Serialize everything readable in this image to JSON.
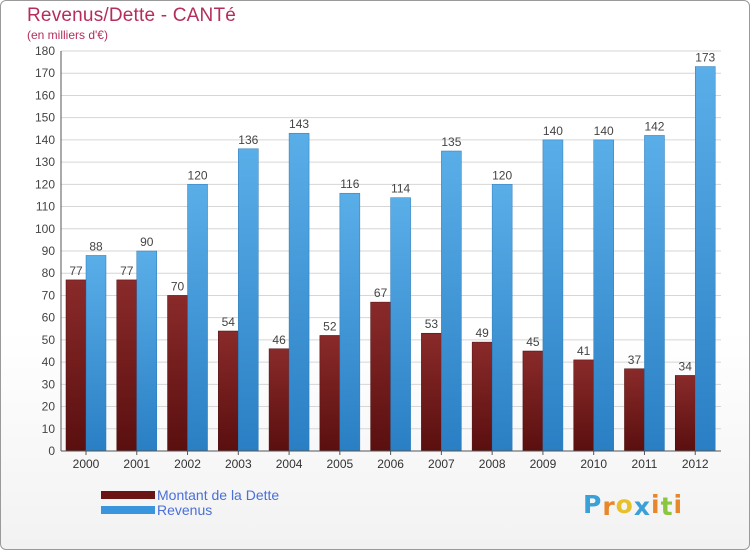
{
  "title": "Revenus/Dette - CANTé",
  "subtitle": "(en milliers d'€)",
  "logo": {
    "letters": [
      "P",
      "r",
      "o",
      "x",
      "i",
      "t",
      "i"
    ],
    "colors": [
      "#3aa0d8",
      "#e8872a",
      "#e8c02a",
      "#3aa0d8",
      "#e8872a",
      "#8cc63f",
      "#e8872a"
    ]
  },
  "colors": {
    "dette": "#7a1f1f",
    "revenus": "#3a95dd",
    "title": "#b52d5c",
    "legend_text": "#4a6fd8"
  },
  "chart_data": {
    "type": "bar",
    "title": "Revenus/Dette - CANTé",
    "subtitle": "(en milliers d'€)",
    "categories": [
      "2000",
      "2001",
      "2002",
      "2003",
      "2004",
      "2005",
      "2006",
      "2007",
      "2008",
      "2009",
      "2010",
      "2011",
      "2012"
    ],
    "series": [
      {
        "name": "Montant de la Dette",
        "values": [
          77,
          77,
          70,
          54,
          46,
          52,
          67,
          53,
          49,
          45,
          41,
          37,
          34
        ]
      },
      {
        "name": "Revenus",
        "values": [
          88,
          90,
          120,
          136,
          143,
          116,
          114,
          135,
          120,
          140,
          140,
          142,
          173
        ]
      }
    ],
    "ylim": [
      0,
      180
    ],
    "yticks": [
      0,
      10,
      20,
      30,
      40,
      50,
      60,
      70,
      80,
      90,
      100,
      110,
      120,
      130,
      140,
      150,
      160,
      170,
      180
    ],
    "grid": true,
    "legend": "bottom-left"
  }
}
